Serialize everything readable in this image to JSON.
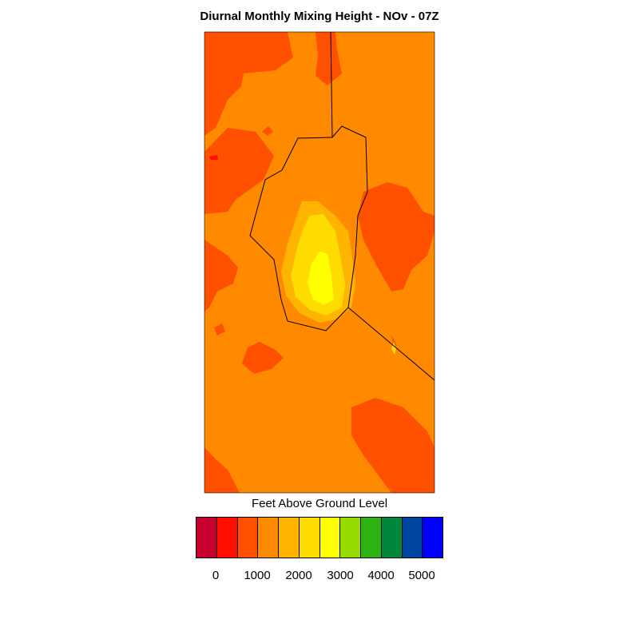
{
  "title": "Diurnal Monthly Mixing Height - NOv - 07Z",
  "units_label": "Feet Above Ground Level",
  "colorbar": {
    "colors": [
      "#c8002e",
      "#ff0f00",
      "#ff5000",
      "#ff8a00",
      "#ffb400",
      "#ffdc00",
      "#ffff00",
      "#96dc00",
      "#2db414",
      "#00873c",
      "#0046a0",
      "#0000ff"
    ],
    "tick_labels": [
      "0",
      "1000",
      "2000",
      "3000",
      "4000",
      "5000"
    ]
  },
  "colors": {
    "background_field": "#ff8a00",
    "high_cell": "#ff5000",
    "peak_light": "#ffb400",
    "peak_mid": "#ffdc00",
    "peak_core": "#ffff00"
  }
}
